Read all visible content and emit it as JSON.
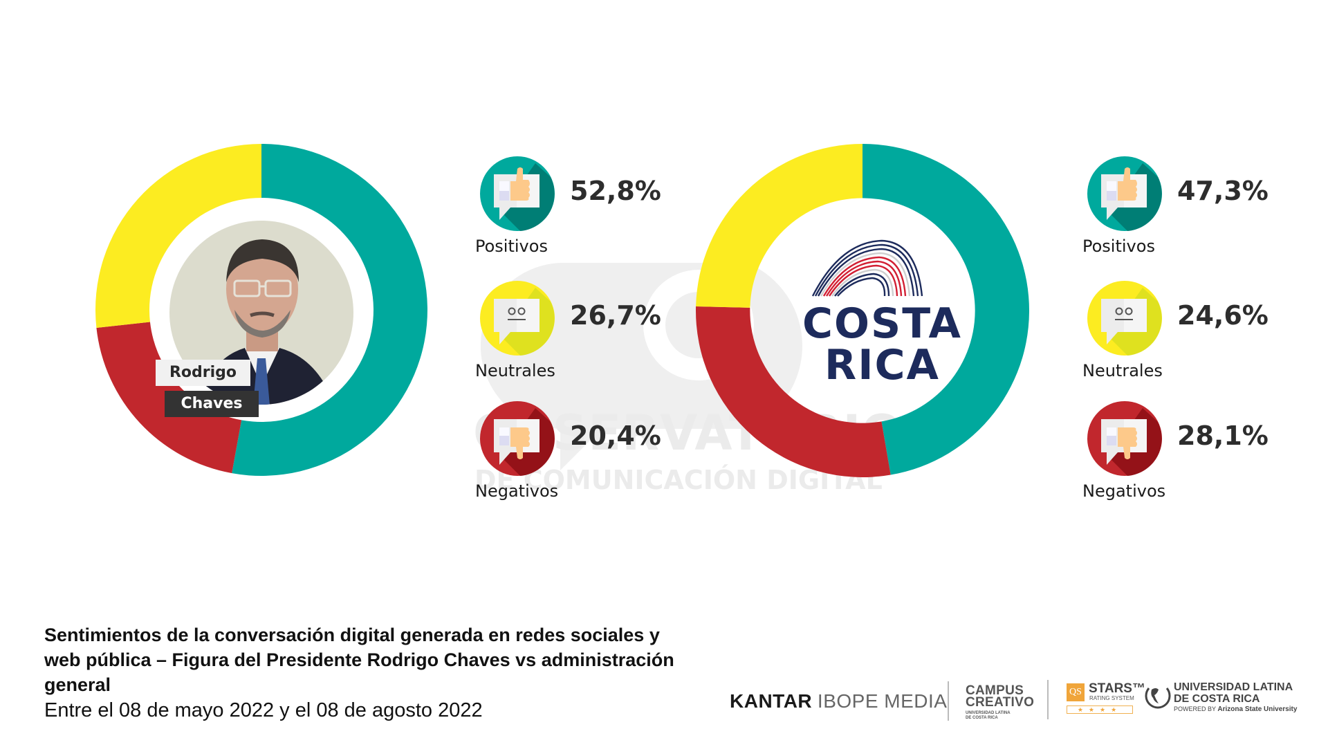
{
  "colors": {
    "positive": "#00a99d",
    "neutral": "#fcec21",
    "negative": "#c1272d",
    "text_dark": "#2d2d2d"
  },
  "chart_data": [
    {
      "type": "pie",
      "title": "Figura del Presidente Rodrigo Chaves",
      "center_label": "Rodrigo Chaves",
      "categories": [
        "Positivos",
        "Neutrales",
        "Negativos"
      ],
      "values": [
        52.8,
        26.7,
        20.4
      ],
      "colors": [
        "#00a99d",
        "#fcec21",
        "#c1272d"
      ],
      "unit": "%",
      "donut": true
    },
    {
      "type": "pie",
      "title": "Administración general",
      "center_label": "COSTA RICA",
      "categories": [
        "Positivos",
        "Neutrales",
        "Negativos"
      ],
      "values": [
        47.3,
        24.6,
        28.1
      ],
      "colors": [
        "#00a99d",
        "#fcec21",
        "#c1272d"
      ],
      "unit": "%",
      "donut": true
    }
  ],
  "left_chart": {
    "name_line1": "Rodrigo",
    "name_line2": "Chaves",
    "legend": [
      {
        "label": "Positivos",
        "value": "52,8%",
        "icon": "thumbs-up-icon"
      },
      {
        "label": "Neutrales",
        "value": "26,7%",
        "icon": "neutral-face-icon"
      },
      {
        "label": "Negativos",
        "value": "20,4%",
        "icon": "thumbs-down-icon"
      }
    ]
  },
  "right_chart": {
    "logo_line1": "COSTA",
    "logo_line2": "RICA",
    "legend": [
      {
        "label": "Positivos",
        "value": "47,3%",
        "icon": "thumbs-up-icon"
      },
      {
        "label": "Neutrales",
        "value": "24,6%",
        "icon": "neutral-face-icon"
      },
      {
        "label": "Negativos",
        "value": "28,1%",
        "icon": "thumbs-down-icon"
      }
    ]
  },
  "watermark": {
    "line1": "OBSERVATORIO",
    "line2": "DE COMUNICACIÓN DIGITAL"
  },
  "caption": {
    "title": "Sentimientos de la conversación digital generada en redes sociales y web pública – Figura del Presidente Rodrigo Chaves vs administración general",
    "date_range": "Entre el 08 de mayo 2022 y el 08 de agosto 2022"
  },
  "logos": {
    "kantar_bold": "KANTAR",
    "kantar_light": "IBOPE MEDIA",
    "campus_line1": "CAMPUS",
    "campus_line2": "CREATIVO",
    "campus_sub1": "UNIVERSIDAD LATINA",
    "campus_sub2": "DE COSTA RICA",
    "qs_badge": "QS",
    "qs_title": "STARS™",
    "qs_sub": "RATING SYSTEM",
    "qs_stars": "★★★★",
    "ulatina_line1": "UNIVERSIDAD LATINA",
    "ulatina_line2": "DE COSTA RICA",
    "ulatina_powered": "POWERED BY",
    "ulatina_asu": "Arizona State University"
  }
}
